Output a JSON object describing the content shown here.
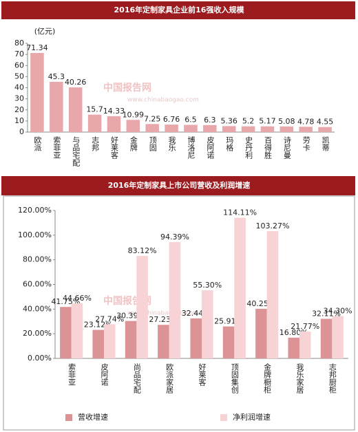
{
  "chart_data": [
    {
      "type": "bar",
      "title": "2016年定制家具企业前16强收入规模",
      "y_label": "(亿元)",
      "categories": [
        "欧派",
        "索菲亚",
        "与品宅配",
        "志邦",
        "好莱客",
        "金牌",
        "顶固",
        "我乐",
        "博洛尼",
        "皮阿诺",
        "玛格",
        "史丹利",
        "百得胜",
        "诗尼曼",
        "劳卡",
        "凯蒂"
      ],
      "values": [
        71.34,
        45.3,
        40.26,
        15.7,
        14.33,
        10.99,
        7.25,
        6.76,
        6.5,
        6.3,
        5.36,
        5.2,
        5.17,
        5.08,
        4.78,
        4.55
      ],
      "color": "#e8a7aa",
      "ylim": [
        0,
        80
      ],
      "yticks": [
        0,
        10,
        20,
        30,
        40,
        50,
        60,
        70,
        80
      ],
      "grid": false
    },
    {
      "type": "bar",
      "title": "2016年定制家具上市公司营收及利润增速",
      "categories": [
        "索菲亚",
        "皮阿诺",
        "尚品宅配",
        "欧派家居",
        "好莱客",
        "顶固集创",
        "金牌橱柜",
        "我乐家居",
        "志邦厨柜"
      ],
      "series": [
        {
          "name": "营收增速",
          "color": "#dc9396",
          "values": [
            41.75,
            23.12,
            30.39,
            27.23,
            32.44,
            25.91,
            40.25,
            16.8,
            32.11
          ],
          "value_labels": [
            "41.75%",
            "23.12%",
            "30.39%",
            "27.23%",
            "32.44%",
            "25.91%",
            "40.25%",
            "16.80%",
            "32.11%"
          ]
        },
        {
          "name": "净利润增速",
          "color": "#f7d3d6",
          "values": [
            44.66,
            27.74,
            83.12,
            94.39,
            55.3,
            114.11,
            103.27,
            21.77,
            34.3
          ],
          "value_labels": [
            "44.66%",
            "27.74%",
            "83.12%",
            "94.39%",
            "55.30%",
            "114.11%",
            "103.27%",
            "21.77%",
            "34.30%"
          ]
        }
      ],
      "ylim": [
        0,
        120
      ],
      "yticks": [
        {
          "value": 0,
          "label": "0.00%"
        },
        {
          "value": 20,
          "label": "20.00%"
        },
        {
          "value": 40,
          "label": "40.00%"
        },
        {
          "value": 60,
          "label": "60.00%"
        },
        {
          "value": 80,
          "label": "80.00%"
        },
        {
          "value": 100,
          "label": "100.00%"
        },
        {
          "value": 120,
          "label": "120.00%"
        }
      ],
      "grid": false,
      "legend": "bottom"
    }
  ],
  "watermark": {
    "name": "中国报告网",
    "url": "www.chinabaogao.com"
  }
}
